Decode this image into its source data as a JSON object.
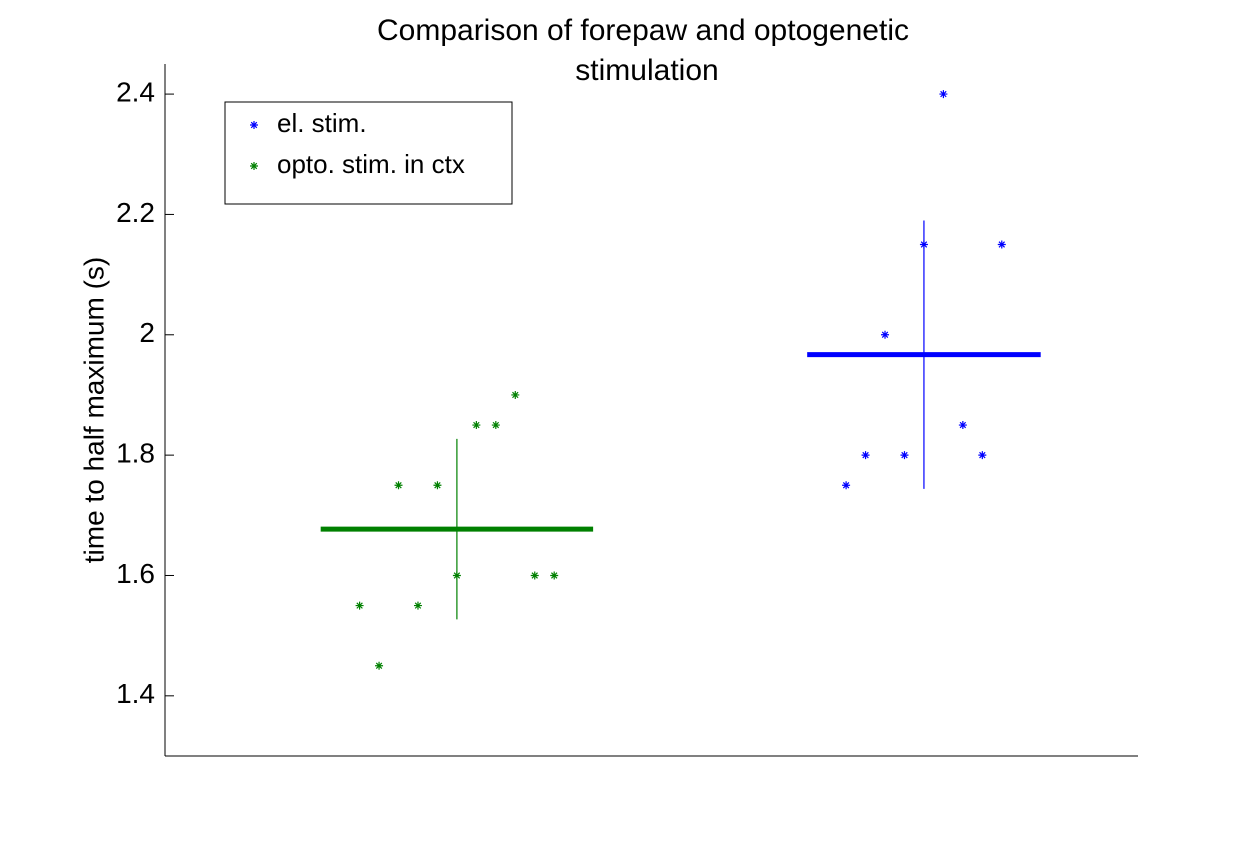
{
  "chart_data": {
    "type": "scatter",
    "title": [
      "Comparison of forepaw and optogenetic",
      "stimulation"
    ],
    "ylabel": "time to half maximum (s)",
    "xlim": [
      0,
      50
    ],
    "ylim": [
      1.3,
      2.45
    ],
    "yticks": [
      1.4,
      1.6,
      1.8,
      2,
      2.2,
      2.4
    ],
    "legend": "upper left",
    "series": [
      {
        "name": "el. stim.",
        "color": "#0000ff",
        "x": [
          35,
          36,
          37,
          38,
          39,
          40,
          41,
          42,
          43
        ],
        "values": [
          1.75,
          1.8,
          2.0,
          1.8,
          2.15,
          2.4,
          1.85,
          1.8,
          2.15
        ]
      },
      {
        "name": "opto. stim. in ctx",
        "color": "#008000",
        "x": [
          10,
          11,
          12,
          13,
          14,
          15,
          16,
          17,
          18,
          19,
          20
        ],
        "values": [
          1.55,
          1.45,
          1.75,
          1.55,
          1.75,
          1.6,
          1.85,
          1.85,
          1.9,
          1.6,
          1.6
        ]
      }
    ],
    "means": [
      {
        "color": "#0000ff",
        "x": [
          33,
          45
        ],
        "center": 39,
        "value": 1.967,
        "error": 0.223
      },
      {
        "color": "#008000",
        "x": [
          8,
          22
        ],
        "center": 15,
        "value": 1.677,
        "error": 0.15
      }
    ]
  }
}
